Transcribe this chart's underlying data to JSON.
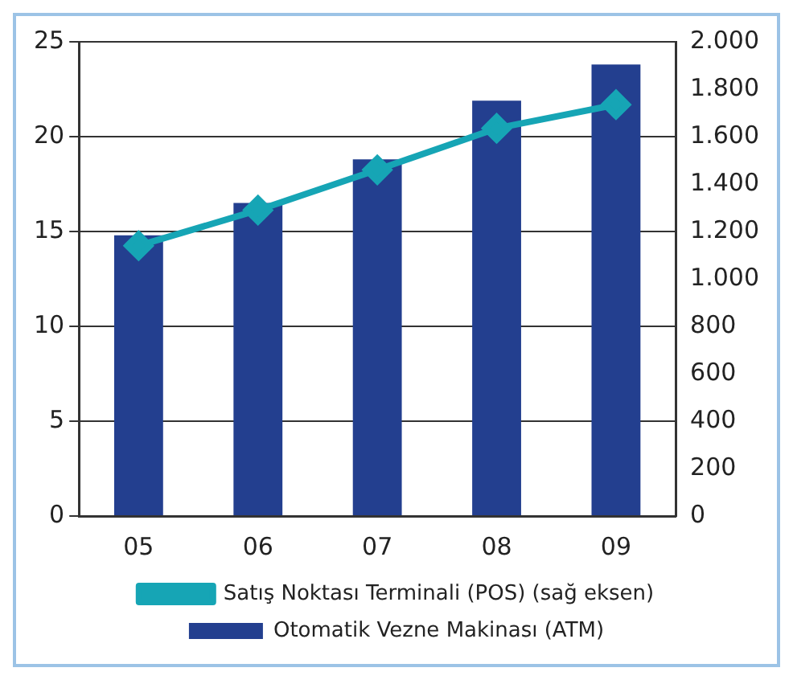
{
  "chart_data": {
    "type": "bar",
    "categories": [
      "05",
      "06",
      "07",
      "08",
      "09"
    ],
    "series": [
      {
        "name": "Otomatik Vezne Makinası (ATM)",
        "color": "#233f8f",
        "values": [
          14.8,
          16.5,
          18.8,
          21.9,
          23.8
        ]
      },
      {
        "name": "Satış Noktası Terminali (POS) (sağ eksen)",
        "type": "line",
        "axis": "y2",
        "color": "#16a5b5",
        "values": [
          1140,
          1290,
          1460,
          1635,
          1735
        ]
      }
    ],
    "ylim": [
      0,
      25
    ],
    "yticks": [
      0,
      5,
      10,
      15,
      20,
      25
    ],
    "y2lim": [
      0,
      2000
    ],
    "y2ticks": [
      {
        "value": 0,
        "label": "0"
      },
      {
        "value": 200,
        "label": "200"
      },
      {
        "value": 400,
        "label": "400"
      },
      {
        "value": 600,
        "label": "600"
      },
      {
        "value": 800,
        "label": "800"
      },
      {
        "value": 1000,
        "label": "1.000"
      },
      {
        "value": 1200,
        "label": "1.200"
      },
      {
        "value": 1400,
        "label": "1.400"
      },
      {
        "value": 1600,
        "label": "1.600"
      },
      {
        "value": 1800,
        "label": "1.800"
      },
      {
        "value": 2000,
        "label": "2.000"
      }
    ],
    "grid": "y",
    "legend": "bottom",
    "marker": "diamond",
    "line_style": "solid"
  }
}
